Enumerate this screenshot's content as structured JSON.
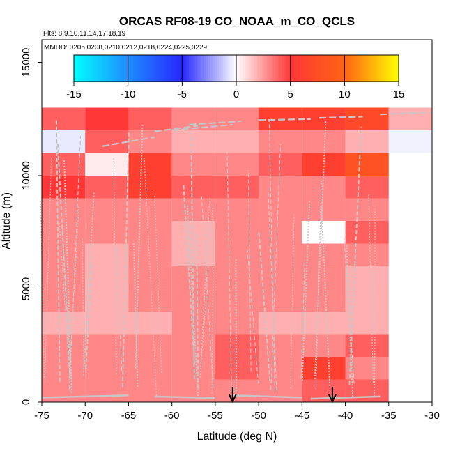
{
  "chart_data": {
    "type": "heatmap",
    "title": "ORCAS RF08-19 CO_NOAA_m_CO_QCLS",
    "subtitle_flights": "Flts: 8,9,10,11,14,17,18,19",
    "subtitle_dates": "MMDD: 0205,0208,0210,0212,0218,0224,0225,0229",
    "xlabel": "Latitude (deg N)",
    "ylabel": "Altitude (m)",
    "xlim": [
      -75,
      -30
    ],
    "ylim": [
      0,
      16000
    ],
    "x_ticks": [
      "-75",
      "-70",
      "-65",
      "-60",
      "-55",
      "-50",
      "-45",
      "-40",
      "-35",
      "-30"
    ],
    "y_ticks": [
      "0",
      "5000",
      "10000",
      "15000"
    ],
    "colorbar": {
      "range": [
        -15,
        15
      ],
      "ticks": [
        "-15",
        "-10",
        "-5",
        "0",
        "5",
        "10",
        "15"
      ]
    },
    "lat_bins": [
      -75,
      -70,
      -65,
      -60,
      -55,
      -50,
      -45,
      -40,
      -35
    ],
    "alt_bins": [
      0,
      1000,
      2000,
      3000,
      4000,
      5000,
      6000,
      7000,
      8000,
      9000,
      10000,
      11000,
      12000
    ],
    "cell_values": [
      [
        3,
        3,
        3,
        3,
        3,
        3,
        4,
        4,
        null
      ],
      [
        3,
        3,
        3,
        3,
        4,
        3,
        6,
        3,
        null
      ],
      [
        3,
        3,
        3,
        3,
        4,
        3,
        3,
        4,
        null
      ],
      [
        2,
        2,
        2,
        3,
        3,
        2,
        2,
        2,
        null
      ],
      [
        3,
        2,
        3,
        3,
        3,
        3,
        3,
        2,
        null
      ],
      [
        3,
        2,
        3,
        3,
        3,
        3,
        3,
        2,
        null
      ],
      [
        3,
        2,
        3,
        2,
        3,
        3,
        3,
        3,
        null
      ],
      [
        3,
        3,
        3,
        2,
        3,
        3,
        0,
        4,
        null
      ],
      [
        3,
        3,
        3,
        3,
        3,
        3,
        3,
        3,
        null
      ],
      [
        5,
        4,
        6,
        4,
        4,
        3,
        3,
        4,
        null
      ],
      [
        4,
        0.5,
        6,
        3,
        3,
        4,
        6,
        8,
        null
      ],
      [
        -0.5,
        4,
        3,
        2,
        2,
        3,
        3,
        2,
        -0.3
      ],
      [
        4,
        5,
        4,
        3,
        3,
        6,
        6,
        7,
        2
      ]
    ],
    "markers": [
      {
        "type": "arrow-down",
        "lat": -53.0
      },
      {
        "type": "arrow-down",
        "lat": -41.5
      }
    ]
  }
}
